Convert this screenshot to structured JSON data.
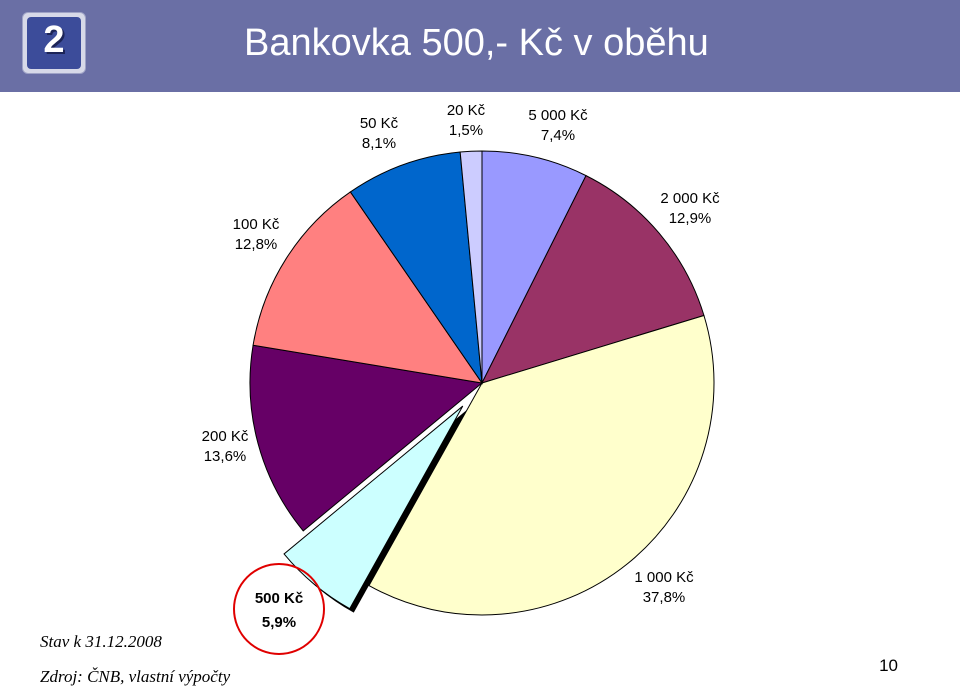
{
  "header": {
    "slide_badge": "2",
    "title": "Bankovka 500,- Kč v oběhu"
  },
  "chart_data": {
    "type": "pie",
    "title": "",
    "start_angle_deg": 0,
    "direction": "clockwise",
    "exploded_slice": "500 Kč",
    "highlighted_slice": "500 Kč",
    "slices": [
      {
        "name": "5 000 Kč",
        "value": 7.4,
        "label_pct": "7,4%",
        "color": "#9999ff"
      },
      {
        "name": "2 000 Kč",
        "value": 12.9,
        "label_pct": "12,9%",
        "color": "#993366"
      },
      {
        "name": "1 000 Kč",
        "value": 37.8,
        "label_pct": "37,8%",
        "color": "#ffffcc"
      },
      {
        "name": "500 Kč",
        "value": 5.9,
        "label_pct": "5,9%",
        "color": "#ccffff"
      },
      {
        "name": "200 Kč",
        "value": 13.6,
        "label_pct": "13,6%",
        "color": "#660066"
      },
      {
        "name": "100 Kč",
        "value": 12.8,
        "label_pct": "12,8%",
        "color": "#ff8080"
      },
      {
        "name": "50 Kč",
        "value": 8.1,
        "label_pct": "8,1%",
        "color": "#0066cc"
      },
      {
        "name": "20 Kč",
        "value": 1.5,
        "label_pct": "1,5%",
        "color": "#ccccff"
      }
    ]
  },
  "notes": {
    "as_of": "Stav k 31.12.2008",
    "source": "Zdroj: ČNB, vlastní výpočty"
  },
  "page_number": "10"
}
